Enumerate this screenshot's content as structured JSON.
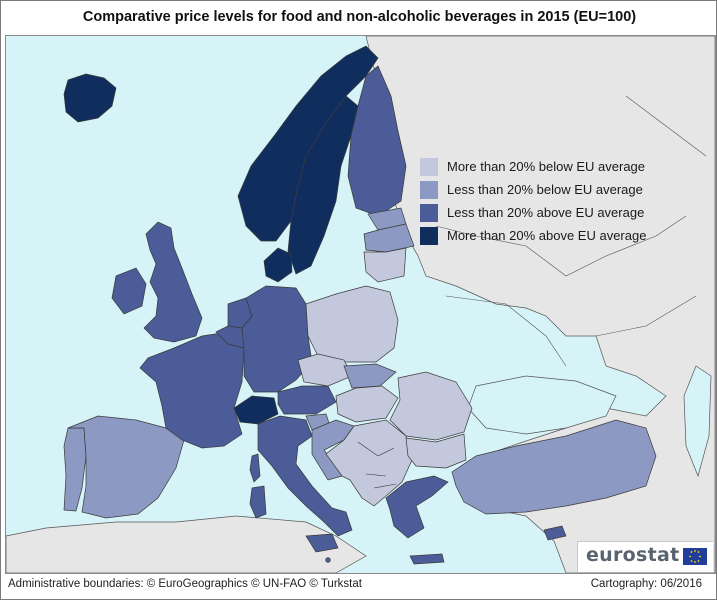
{
  "title": "Comparative price levels for food and non-alcoholic beverages in 2015 (EU=100)",
  "legend": [
    {
      "label": "More than 20% below EU average",
      "color": "#c3c8dc"
    },
    {
      "label": "Less than 20% below EU average",
      "color": "#8c99c2"
    },
    {
      "label": "Less than 20% above EU average",
      "color": "#4b5c98"
    },
    {
      "label": "More than 20% above EU average",
      "color": "#0f2e5e"
    }
  ],
  "colors": {
    "sea": "#d6f3f7",
    "non_data_land": "#e6e6e6",
    "border": "#3a3a3a"
  },
  "footer": {
    "boundaries": "Administrative boundaries: © EuroGeographics © UN-FAO © Turkstat",
    "cartography": "Cartography: 06/2016"
  },
  "logo": {
    "text": "eurostat",
    "icon": "eu-flag-icon"
  }
}
